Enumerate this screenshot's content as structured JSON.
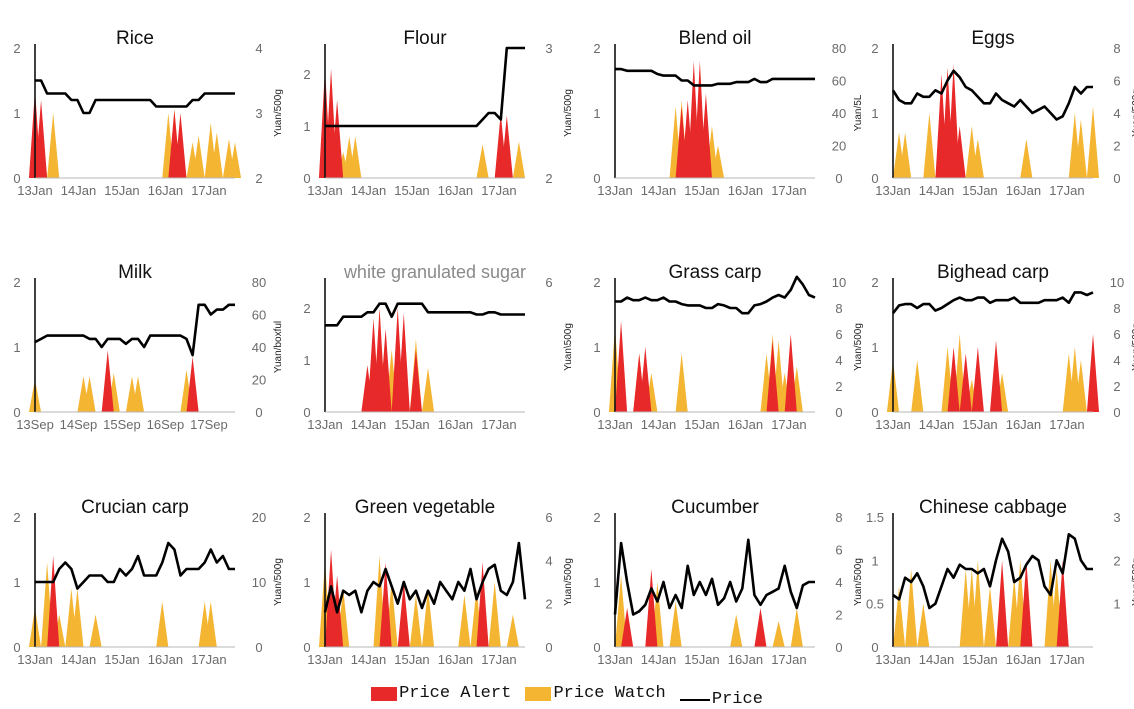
{
  "colors": {
    "alert": "#e8292a",
    "watch": "#f4b533",
    "price": "#000000",
    "axis": "#6b6b6b",
    "sugar_title": "#8a8a8a"
  },
  "legend": {
    "alert_label": "Price Alert",
    "watch_label": "Price Watch",
    "price_label": "Price"
  },
  "chart_data": [
    {
      "type": "area",
      "title": "Rice",
      "left_ticks": [
        "0",
        "1",
        "2"
      ],
      "right_ticks": [
        "2",
        "3",
        "4"
      ],
      "right_label": "Yuan/500g",
      "x_ticks": [
        "13Jan",
        "14Jan",
        "15Jan",
        "16Jan",
        "17Jan"
      ],
      "ylim": [
        0,
        2
      ],
      "y2lim": [
        2,
        4
      ],
      "price": [
        3.5,
        3.5,
        3.3,
        3.3,
        3.3,
        3.3,
        3.2,
        3.2,
        3.0,
        3.0,
        3.2,
        3.2,
        3.2,
        3.2,
        3.2,
        3.2,
        3.2,
        3.2,
        3.2,
        3.2,
        3.1,
        3.1,
        3.1,
        3.1,
        3.1,
        3.1,
        3.2,
        3.2,
        3.3,
        3.3,
        3.3,
        3.3,
        3.3,
        3.3
      ],
      "alert": [
        [
          0,
          1.35
        ],
        [
          1,
          1.2
        ],
        [
          23,
          1.05
        ],
        [
          24,
          1.0
        ]
      ],
      "watch": [
        [
          1,
          1.1
        ],
        [
          3,
          1.0
        ],
        [
          22,
          1.0
        ],
        [
          23,
          1.05
        ],
        [
          26,
          0.55
        ],
        [
          27,
          0.65
        ],
        [
          29,
          0.85
        ],
        [
          30,
          0.7
        ],
        [
          32,
          0.6
        ],
        [
          33,
          0.55
        ]
      ]
    },
    {
      "type": "area",
      "title": "Flour",
      "left_ticks": [
        "0",
        "1",
        "2"
      ],
      "right_ticks": [
        "2",
        "3"
      ],
      "right_label": "Yuan/500g",
      "x_ticks": [
        "13Jan",
        "14Jan",
        "15Jan",
        "16Jan",
        "17Jan"
      ],
      "ylim": [
        0,
        2.5
      ],
      "y2lim": [
        2,
        3
      ],
      "price": [
        2.4,
        2.4,
        2.4,
        2.4,
        2.4,
        2.4,
        2.4,
        2.4,
        2.4,
        2.4,
        2.4,
        2.4,
        2.4,
        2.4,
        2.4,
        2.4,
        2.4,
        2.4,
        2.4,
        2.4,
        2.4,
        2.4,
        2.4,
        2.4,
        2.4,
        2.4,
        2.45,
        2.5,
        2.5,
        2.45,
        3.0,
        3.0,
        3.0,
        3.0
      ],
      "alert": [
        [
          0,
          2.1
        ],
        [
          1,
          2.1
        ],
        [
          2,
          1.5
        ],
        [
          29,
          1.25
        ],
        [
          30,
          1.2
        ]
      ],
      "watch": [
        [
          3,
          0.5
        ],
        [
          4,
          0.8
        ],
        [
          5,
          0.8
        ],
        [
          26,
          0.65
        ],
        [
          32,
          0.7
        ]
      ]
    },
    {
      "type": "area",
      "title": "Blend oil",
      "left_ticks": [
        "0",
        "1",
        "2"
      ],
      "right_ticks": [
        "0",
        "20",
        "40",
        "60",
        "80"
      ],
      "right_label": "Yuan/5L",
      "x_ticks": [
        "13Jan",
        "14Jan",
        "15Jan",
        "16Jan",
        "17Jan"
      ],
      "ylim": [
        0,
        2
      ],
      "y2lim": [
        0,
        80
      ],
      "price": [
        67,
        67,
        66,
        66,
        66,
        66,
        66,
        64,
        63,
        63,
        63,
        60,
        60,
        57,
        57,
        57,
        57,
        58,
        58,
        58,
        59,
        59,
        59,
        61,
        59,
        59,
        61,
        61,
        61,
        61,
        61,
        61,
        61,
        61
      ],
      "alert": [
        [
          11,
          1.1
        ],
        [
          12,
          1.2
        ],
        [
          13,
          1.8
        ],
        [
          14,
          1.8
        ],
        [
          15,
          1.3
        ]
      ],
      "watch": [
        [
          10,
          1.1
        ],
        [
          11,
          1.2
        ],
        [
          13,
          1.1
        ],
        [
          15,
          1.1
        ],
        [
          16,
          0.8
        ],
        [
          17,
          0.5
        ]
      ]
    },
    {
      "type": "area",
      "title": "Eggs",
      "left_ticks": [
        "0",
        "1",
        "2"
      ],
      "right_ticks": [
        "0",
        "2",
        "4",
        "6",
        "8"
      ],
      "right_label": "Yuan/500g",
      "x_ticks": [
        "13Jan",
        "14Jan",
        "15Jan",
        "16Jan",
        "17Jan"
      ],
      "ylim": [
        0,
        2
      ],
      "y2lim": [
        0,
        8
      ],
      "price": [
        5.4,
        4.8,
        4.6,
        4.6,
        5.2,
        5.0,
        5.0,
        5.4,
        5.2,
        6.0,
        6.6,
        6.2,
        5.6,
        5.4,
        5.0,
        4.6,
        4.6,
        5.2,
        4.8,
        4.6,
        4.4,
        4.8,
        4.4,
        4.0,
        4.2,
        4.4,
        4.0,
        3.6,
        3.8,
        4.6,
        5.6,
        5.2,
        5.6,
        5.6
      ],
      "alert": [
        [
          8,
          1.6
        ],
        [
          9,
          1.7
        ],
        [
          10,
          1.75
        ],
        [
          11,
          0.8
        ]
      ],
      "watch": [
        [
          1,
          0.7
        ],
        [
          2,
          0.7
        ],
        [
          6,
          1.0
        ],
        [
          13,
          0.8
        ],
        [
          14,
          0.6
        ],
        [
          22,
          0.6
        ],
        [
          30,
          1.0
        ],
        [
          31,
          0.9
        ],
        [
          33,
          1.1
        ]
      ]
    },
    {
      "type": "area",
      "title": "Milk",
      "left_ticks": [
        "0",
        "1",
        "2"
      ],
      "right_ticks": [
        "0",
        "20",
        "40",
        "60",
        "80"
      ],
      "right_label": "Yuan/boxful",
      "x_ticks": [
        "13Sep",
        "14Sep",
        "15Sep",
        "16Sep",
        "17Sep"
      ],
      "ylim": [
        0,
        2
      ],
      "y2lim": [
        0,
        80
      ],
      "price": [
        43,
        45,
        47,
        47,
        47,
        47,
        47,
        47,
        47,
        45,
        45,
        40,
        45,
        45,
        45,
        42,
        45,
        45,
        40,
        47,
        47,
        47,
        47,
        47,
        47,
        45,
        35,
        66,
        66,
        60,
        63,
        63,
        66,
        66
      ],
      "alert": [
        [
          12,
          0.95
        ],
        [
          26,
          0.85
        ]
      ],
      "watch": [
        [
          0,
          0.5
        ],
        [
          8,
          0.55
        ],
        [
          9,
          0.55
        ],
        [
          12,
          0.6
        ],
        [
          13,
          0.6
        ],
        [
          16,
          0.55
        ],
        [
          17,
          0.55
        ],
        [
          25,
          0.65
        ]
      ]
    },
    {
      "type": "area",
      "title": "white granulated sugar",
      "left_ticks": [
        "0",
        "1",
        "2"
      ],
      "right_ticks": [
        "6"
      ],
      "right_label": "Yuan\\500g",
      "x_ticks": [
        "13Jan",
        "14Jan",
        "15Jan",
        "16Jan",
        "17Jan"
      ],
      "ylim": [
        0,
        2.5
      ],
      "y2lim": [
        0,
        6
      ],
      "price": [
        4.0,
        4.0,
        4.0,
        4.4,
        4.4,
        4.4,
        4.4,
        4.6,
        4.6,
        5.0,
        5.0,
        4.4,
        5.0,
        5.0,
        5.0,
        5.0,
        5.0,
        4.6,
        4.6,
        4.6,
        4.6,
        4.6,
        4.6,
        4.6,
        4.6,
        4.5,
        4.5,
        4.6,
        4.6,
        4.5,
        4.5,
        4.5,
        4.5,
        4.5
      ],
      "alert": [
        [
          7,
          0.9
        ],
        [
          8,
          1.8
        ],
        [
          9,
          2.0
        ],
        [
          10,
          1.6
        ],
        [
          12,
          2.0
        ],
        [
          13,
          1.9
        ],
        [
          15,
          1.2
        ]
      ],
      "watch": [
        [
          9,
          1.95
        ],
        [
          11,
          1.2
        ],
        [
          13,
          1.1
        ],
        [
          15,
          1.4
        ],
        [
          17,
          0.85
        ]
      ]
    },
    {
      "type": "area",
      "title": "Grass carp",
      "left_ticks": [
        "0",
        "1",
        "2"
      ],
      "right_ticks": [
        "0",
        "2",
        "4",
        "6",
        "8",
        "10"
      ],
      "right_label": "Yuan/500g",
      "x_ticks": [
        "13Jan",
        "14Jan",
        "15Jan",
        "16Jan",
        "17Jan"
      ],
      "ylim": [
        0,
        2
      ],
      "y2lim": [
        0,
        10
      ],
      "price": [
        8.5,
        8.5,
        8.8,
        8.6,
        8.6,
        8.8,
        8.6,
        8.6,
        8.8,
        8.5,
        8.5,
        8.3,
        8.2,
        8.2,
        8.2,
        8.0,
        8.0,
        8.3,
        8.2,
        8.0,
        8.0,
        7.6,
        7.6,
        8.2,
        8.3,
        8.5,
        8.8,
        9.0,
        8.8,
        9.4,
        10.4,
        9.8,
        9.0,
        8.8
      ],
      "alert": [
        [
          1,
          1.4
        ],
        [
          4,
          0.9
        ],
        [
          5,
          1.0
        ],
        [
          26,
          1.1
        ],
        [
          29,
          1.2
        ]
      ],
      "watch": [
        [
          0,
          1.3
        ],
        [
          4,
          0.9
        ],
        [
          6,
          0.6
        ],
        [
          11,
          0.9
        ],
        [
          25,
          0.9
        ],
        [
          26,
          1.2
        ],
        [
          27,
          1.1
        ],
        [
          28,
          0.6
        ],
        [
          30,
          0.7
        ]
      ]
    },
    {
      "type": "area",
      "title": "Bighead carp",
      "left_ticks": [
        "0",
        "1",
        "2"
      ],
      "right_ticks": [
        "0",
        "2",
        "4",
        "6",
        "8",
        "10"
      ],
      "right_label": "Yuan/500g",
      "x_ticks": [
        "13Jan",
        "14Jan",
        "15Jan",
        "16Jan",
        "17Jan"
      ],
      "ylim": [
        0,
        2
      ],
      "y2lim": [
        0,
        10
      ],
      "price": [
        7.6,
        8.2,
        8.3,
        8.3,
        8.0,
        8.3,
        8.3,
        7.8,
        8.0,
        8.3,
        8.6,
        8.8,
        8.6,
        8.6,
        8.8,
        8.8,
        8.4,
        8.6,
        8.6,
        8.6,
        8.8,
        8.4,
        8.4,
        8.4,
        8.4,
        8.6,
        8.6,
        8.6,
        8.8,
        8.4,
        9.2,
        9.2,
        9.0,
        9.2
      ],
      "alert": [
        [
          10,
          1.0
        ],
        [
          12,
          0.9
        ],
        [
          14,
          1.0
        ],
        [
          17,
          1.1
        ],
        [
          33,
          1.2
        ]
      ],
      "watch": [
        [
          0,
          0.8
        ],
        [
          4,
          0.8
        ],
        [
          9,
          1.0
        ],
        [
          11,
          1.2
        ],
        [
          12,
          0.6
        ],
        [
          13,
          0.5
        ],
        [
          18,
          0.6
        ],
        [
          29,
          0.9
        ],
        [
          30,
          1.0
        ],
        [
          31,
          0.8
        ]
      ]
    },
    {
      "type": "area",
      "title": "Crucian carp",
      "left_ticks": [
        "0",
        "1",
        "2"
      ],
      "right_ticks": [
        "0",
        "10",
        "20"
      ],
      "right_label": "Yuan/500g",
      "x_ticks": [
        "13Jan",
        "14Jan",
        "15Jan",
        "16Jan",
        "17Jan"
      ],
      "ylim": [
        0,
        2
      ],
      "y2lim": [
        0,
        20
      ],
      "price": [
        10,
        10,
        10,
        10,
        12,
        13,
        12,
        9,
        10,
        11,
        11,
        11,
        10,
        10,
        12,
        11,
        12,
        14,
        11,
        11,
        11,
        13,
        16,
        15,
        11,
        12,
        12,
        12,
        13,
        15,
        13,
        14,
        12,
        12
      ],
      "alert": [
        [
          3,
          1.4
        ]
      ],
      "watch": [
        [
          0,
          0.6
        ],
        [
          2,
          1.3
        ],
        [
          4,
          0.5
        ],
        [
          6,
          0.9
        ],
        [
          7,
          0.9
        ],
        [
          10,
          0.5
        ],
        [
          21,
          0.7
        ],
        [
          28,
          0.7
        ],
        [
          29,
          0.7
        ]
      ]
    },
    {
      "type": "area",
      "title": "Green vegetable",
      "left_ticks": [
        "0",
        "1",
        "2"
      ],
      "right_ticks": [
        "0",
        "2",
        "4",
        "6"
      ],
      "right_label": "Yuan/500g",
      "x_ticks": [
        "13Jan",
        "14Jan",
        "15Jan",
        "16Jan",
        "17Jan"
      ],
      "ylim": [
        0,
        2
      ],
      "y2lim": [
        0,
        6
      ],
      "price": [
        1.6,
        2.8,
        1.6,
        2.6,
        2.4,
        2.6,
        1.6,
        2.6,
        3.0,
        2.8,
        3.6,
        2.8,
        2.0,
        3.0,
        2.2,
        2.6,
        1.8,
        2.6,
        2.0,
        3.0,
        2.6,
        2.2,
        3.0,
        2.6,
        3.6,
        2.2,
        3.0,
        3.6,
        3.8,
        2.6,
        2.4,
        3.0,
        4.8,
        2.2
      ],
      "alert": [
        [
          1,
          1.5
        ],
        [
          2,
          1.1
        ],
        [
          10,
          1.3
        ],
        [
          13,
          1.0
        ],
        [
          26,
          1.3
        ]
      ],
      "watch": [
        [
          0,
          1.3
        ],
        [
          3,
          0.9
        ],
        [
          9,
          1.4
        ],
        [
          11,
          1.0
        ],
        [
          15,
          0.8
        ],
        [
          17,
          0.9
        ],
        [
          23,
          0.8
        ],
        [
          25,
          0.9
        ],
        [
          28,
          1.0
        ],
        [
          31,
          0.5
        ]
      ]
    },
    {
      "type": "area",
      "title": "Cucumber",
      "left_ticks": [
        "0",
        "1",
        "2"
      ],
      "right_ticks": [
        "0",
        "2",
        "4",
        "6",
        "8"
      ],
      "right_label": "Yuan/500g",
      "x_ticks": [
        "13Jan",
        "14Jan",
        "15Jan",
        "16Jan",
        "17Jan"
      ],
      "ylim": [
        0,
        2
      ],
      "y2lim": [
        0,
        8
      ],
      "price": [
        2.0,
        6.4,
        4.0,
        2.0,
        2.2,
        2.6,
        3.6,
        2.8,
        4.0,
        2.4,
        3.2,
        2.4,
        5.0,
        3.2,
        4.0,
        3.2,
        4.2,
        2.6,
        3.0,
        4.0,
        2.8,
        3.6,
        6.6,
        3.2,
        2.6,
        3.2,
        3.4,
        3.6,
        5.0,
        3.4,
        2.4,
        3.8,
        4.0,
        4.0
      ],
      "alert": [
        [
          2,
          0.6
        ],
        [
          6,
          1.2
        ],
        [
          24,
          0.6
        ]
      ],
      "watch": [
        [
          1,
          1.1
        ],
        [
          7,
          1.0
        ],
        [
          10,
          0.7
        ],
        [
          20,
          0.5
        ],
        [
          27,
          0.4
        ],
        [
          30,
          0.6
        ]
      ]
    },
    {
      "type": "area",
      "title": "Chinese cabbage",
      "left_ticks": [
        "0",
        "0.5",
        "1",
        "1.5"
      ],
      "right_ticks": [
        "1",
        "2",
        "3"
      ],
      "right_label": "Yuan/500g",
      "x_ticks": [
        "13Jan",
        "14Jan",
        "15Jan",
        "16Jan",
        "17Jan"
      ],
      "ylim": [
        0,
        1.5
      ],
      "y2lim": [
        0,
        3
      ],
      "price": [
        1.2,
        1.1,
        1.6,
        1.5,
        1.7,
        1.4,
        0.9,
        1.0,
        1.4,
        1.8,
        1.6,
        1.9,
        1.8,
        1.8,
        1.7,
        1.8,
        1.4,
        2.0,
        2.5,
        2.2,
        1.5,
        1.6,
        1.9,
        2.1,
        2.0,
        1.4,
        1.2,
        2.0,
        1.7,
        2.6,
        2.5,
        2.0,
        1.8,
        1.8
      ],
      "alert": [
        [
          18,
          1.0
        ],
        [
          22,
          1.0
        ],
        [
          28,
          1.0
        ]
      ],
      "watch": [
        [
          1,
          0.7
        ],
        [
          3,
          0.9
        ],
        [
          5,
          0.5
        ],
        [
          12,
          0.9
        ],
        [
          13,
          0.9
        ],
        [
          14,
          1.0
        ],
        [
          16,
          0.7
        ],
        [
          20,
          0.8
        ],
        [
          21,
          1.0
        ],
        [
          26,
          1.0
        ],
        [
          27,
          0.9
        ]
      ]
    }
  ]
}
